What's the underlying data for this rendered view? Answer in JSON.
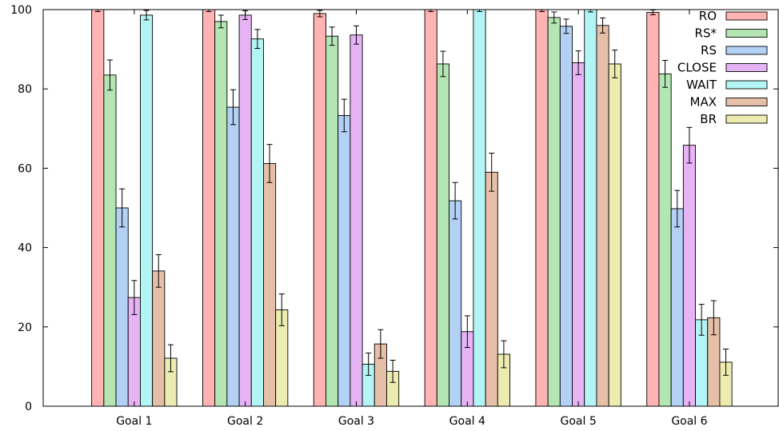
{
  "chart_data": {
    "type": "bar",
    "title": "",
    "xlabel": "",
    "ylabel": "",
    "ylim": [
      0,
      100
    ],
    "yticks": [
      "0",
      "20",
      "40",
      "60",
      "80",
      "100"
    ],
    "grid": false,
    "legend_position": "top-right",
    "categories": [
      "Goal 1",
      "Goal 2",
      "Goal 3",
      "Goal 4",
      "Goal 5",
      "Goal 6"
    ],
    "series": [
      {
        "name": "RO",
        "color": "#ffb3b3",
        "values": [
          100,
          100,
          99,
          100,
          100,
          99.3
        ],
        "errors": [
          0.5,
          0.5,
          0.8,
          0.5,
          0.5,
          0.6
        ]
      },
      {
        "name": "RS*",
        "color": "#b3e6b3",
        "values": [
          83.5,
          97,
          93.3,
          86.3,
          98,
          83.8
        ],
        "errors": [
          3.8,
          1.6,
          2.3,
          3.2,
          1.4,
          3.4
        ]
      },
      {
        "name": "RS",
        "color": "#b3d1f5",
        "values": [
          50,
          75.4,
          73.3,
          51.8,
          95.8,
          49.8
        ],
        "errors": [
          4.8,
          4.4,
          4.1,
          4.6,
          1.8,
          4.6
        ]
      },
      {
        "name": "CLOSE",
        "color": "#e6b3f5",
        "values": [
          27.4,
          98.6,
          93.6,
          18.8,
          86.6,
          65.8
        ],
        "errors": [
          4.3,
          1.1,
          2.3,
          4.0,
          3.0,
          4.5
        ]
      },
      {
        "name": "WAIT",
        "color": "#b3f5f5",
        "values": [
          98.6,
          92.6,
          10.6,
          100,
          100,
          21.8
        ],
        "errors": [
          1.2,
          2.4,
          2.8,
          0.5,
          0.6,
          3.9
        ]
      },
      {
        "name": "MAX",
        "color": "#e6bfa8",
        "values": [
          34.1,
          61.2,
          15.7,
          59,
          96,
          22.3
        ],
        "errors": [
          4.1,
          4.8,
          3.6,
          4.8,
          1.9,
          4.3
        ]
      },
      {
        "name": "BR",
        "color": "#ecebb0",
        "values": [
          12.1,
          24.3,
          8.8,
          13.1,
          86.3,
          11.1
        ],
        "errors": [
          3.4,
          4.0,
          2.8,
          3.4,
          3.5,
          3.3
        ]
      }
    ]
  }
}
